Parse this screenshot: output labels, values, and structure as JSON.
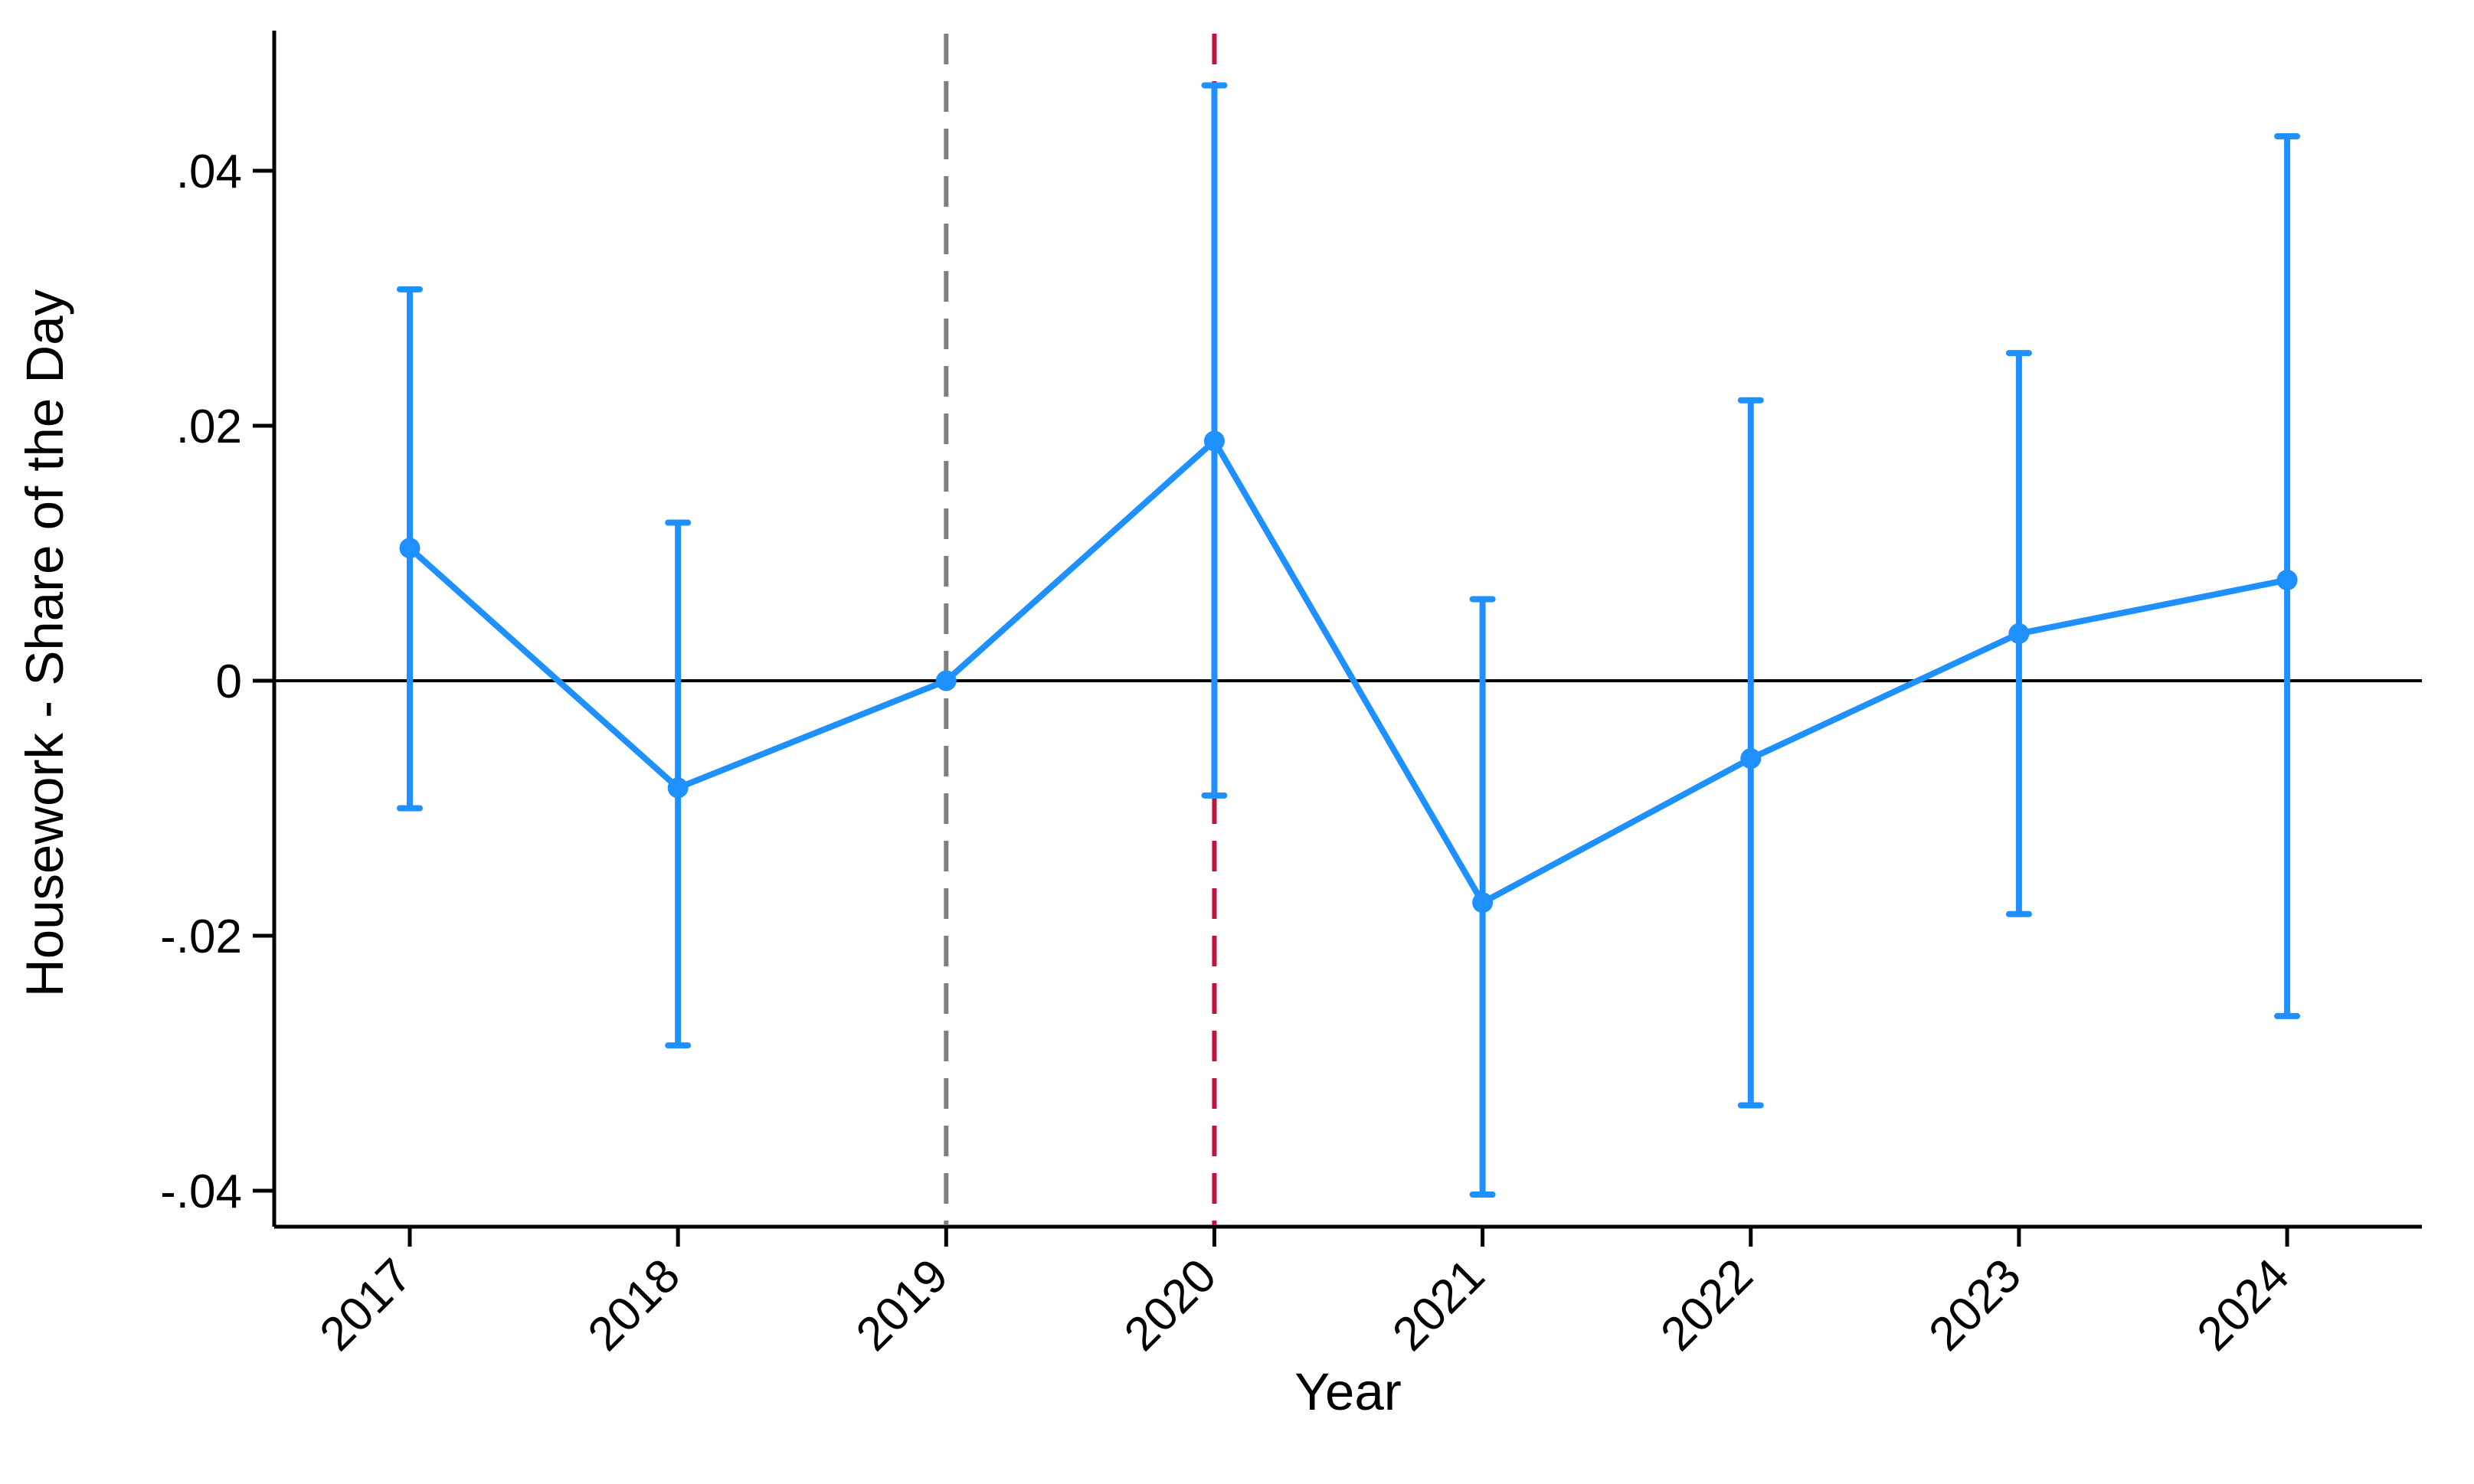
{
  "page": {
    "background": "#FFFFFF"
  },
  "chart_data": {
    "type": "line",
    "subtype": "coefficient-plot-with-confidence-intervals",
    "title": "",
    "xlabel": "Year",
    "ylabel": "Housework - Share of the Day",
    "categories": [
      "2017",
      "2018",
      "2019",
      "2020",
      "2021",
      "2022",
      "2023",
      "2024"
    ],
    "series": [
      {
        "name": "estimate",
        "values": [
          0.0104,
          -0.0084,
          0.0,
          0.0188,
          -0.0174,
          -0.0061,
          0.0037,
          0.0079
        ],
        "ci_low": [
          -0.01,
          -0.0286,
          null,
          -0.009,
          -0.0403,
          -0.0333,
          -0.0183,
          -0.0263
        ],
        "ci_high": [
          0.0307,
          0.0124,
          null,
          0.0467,
          0.0064,
          0.022,
          0.0257,
          0.0427
        ],
        "color": "#1E90FF",
        "marker": "circle"
      }
    ],
    "y_ticks": [
      {
        "value": 0.04,
        "label": ".04"
      },
      {
        "value": 0.02,
        "label": ".02"
      },
      {
        "value": 0.0,
        "label": "0"
      },
      {
        "value": -0.02,
        "label": "-.02"
      },
      {
        "value": -0.04,
        "label": "-.04"
      }
    ],
    "ylim": [
      -0.043,
      0.051
    ],
    "grid": false,
    "legend": false,
    "reference_lines": [
      {
        "orientation": "horizontal",
        "value": 0,
        "style": "solid",
        "color": "#000000"
      },
      {
        "orientation": "vertical",
        "at": "2019",
        "style": "dashed",
        "color": "#7F7F7F"
      },
      {
        "orientation": "vertical",
        "at": "2020",
        "style": "dashed",
        "color": "#C41240"
      }
    ],
    "axis_color": "#000000"
  }
}
